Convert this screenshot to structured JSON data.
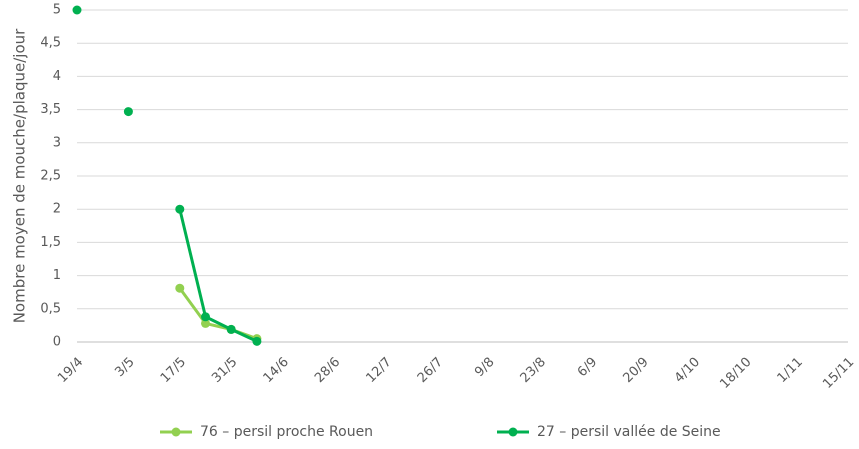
{
  "chart_data": {
    "type": "line",
    "y_label": "Nombre moyen de mouche/plaque/jour",
    "categories": [
      "19/4",
      null,
      "3/5",
      null,
      "17/5",
      null,
      "31/5",
      null,
      "14/6",
      null,
      "28/6",
      null,
      "12/7",
      null,
      "26/7",
      null,
      "9/8",
      null,
      "23/8",
      null,
      "6/9",
      null,
      "20/9",
      null,
      "4/10",
      null,
      "18/10",
      null,
      "1/11",
      null,
      "15/11"
    ],
    "series": [
      {
        "name": "76 – persil proche Rouen",
        "color": "#92d050",
        "values": [
          null,
          null,
          null,
          null,
          0.81,
          0.28,
          0.19,
          0.05,
          null,
          null,
          null,
          null,
          null,
          null,
          null,
          null,
          null,
          null,
          null,
          null,
          null,
          null,
          null,
          null,
          null,
          null,
          null,
          null,
          null,
          null,
          null
        ]
      },
      {
        "name": "27 – persil vallée de Seine",
        "color": "#00b050",
        "values": [
          5,
          null,
          3.47,
          null,
          2,
          0.38,
          0.19,
          0.01,
          null,
          null,
          null,
          null,
          null,
          null,
          null,
          null,
          null,
          null,
          null,
          null,
          null,
          null,
          null,
          null,
          null,
          null,
          null,
          null,
          null,
          null,
          null
        ]
      }
    ],
    "ylim": [
      0,
      5
    ],
    "yticks": [
      0,
      {
        "value": 0.5,
        "label": "0,5"
      },
      1,
      {
        "value": 1.5,
        "label": "1,5"
      },
      2,
      {
        "value": 2.5,
        "label": "2,5"
      },
      3,
      {
        "value": 3.5,
        "label": "3,5"
      },
      4,
      {
        "value": 4.5,
        "label": "4,5"
      },
      5
    ],
    "grid": true,
    "legend": "bottom"
  }
}
